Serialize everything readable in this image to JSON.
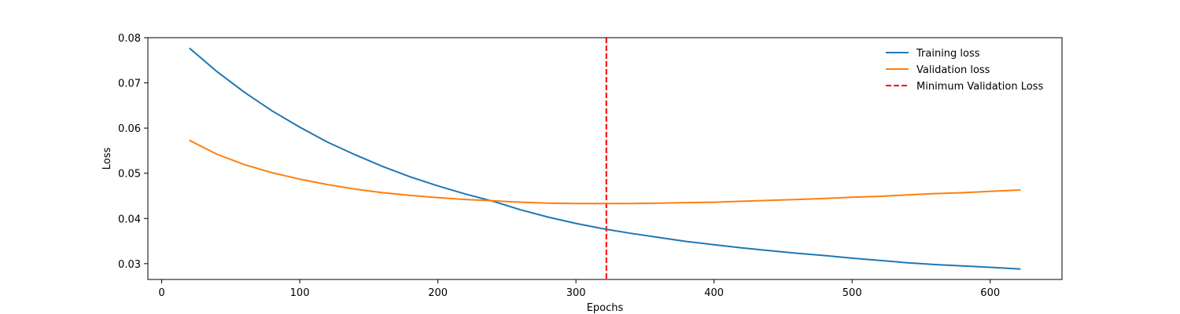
{
  "chart_data": {
    "type": "line",
    "title": "",
    "xlabel": "Epochs",
    "ylabel": "Loss",
    "xlim": [
      -10,
      652
    ],
    "ylim": [
      0.0265,
      0.08
    ],
    "xticks": [
      0,
      100,
      200,
      300,
      400,
      500,
      600
    ],
    "yticks": [
      0.03,
      0.04,
      0.05,
      0.06,
      0.07,
      0.08
    ],
    "grid": false,
    "legend_position": "top-right",
    "series": [
      {
        "name": "Training loss",
        "color": "#1f77b4",
        "style": "solid",
        "x": [
          20,
          40,
          60,
          80,
          100,
          120,
          140,
          160,
          180,
          200,
          220,
          240,
          260,
          280,
          300,
          320,
          340,
          360,
          380,
          400,
          420,
          440,
          460,
          480,
          500,
          520,
          540,
          560,
          580,
          600,
          622
        ],
        "y": [
          0.0777,
          0.0725,
          0.0679,
          0.0638,
          0.0602,
          0.0569,
          0.0541,
          0.0515,
          0.0492,
          0.0472,
          0.0454,
          0.0438,
          0.0419,
          0.0403,
          0.0389,
          0.0377,
          0.0367,
          0.0358,
          0.0349,
          0.0342,
          0.0335,
          0.0329,
          0.0323,
          0.0318,
          0.0312,
          0.0307,
          0.0302,
          0.0298,
          0.0295,
          0.0292,
          0.0288
        ]
      },
      {
        "name": "Validation loss",
        "color": "#ff7f0e",
        "style": "solid",
        "x": [
          20,
          40,
          60,
          80,
          100,
          120,
          140,
          160,
          180,
          200,
          220,
          240,
          260,
          280,
          300,
          320,
          340,
          360,
          380,
          400,
          420,
          440,
          460,
          480,
          500,
          520,
          540,
          560,
          580,
          600,
          622
        ],
        "y": [
          0.0573,
          0.0542,
          0.0519,
          0.0501,
          0.0487,
          0.0475,
          0.0465,
          0.0457,
          0.0451,
          0.0446,
          0.0442,
          0.0439,
          0.0436,
          0.0434,
          0.0433,
          0.0433,
          0.0433,
          0.0434,
          0.0435,
          0.0436,
          0.0438,
          0.044,
          0.0442,
          0.0444,
          0.0447,
          0.0449,
          0.0452,
          0.0455,
          0.0457,
          0.046,
          0.0463
        ]
      }
    ],
    "reference_lines": [
      {
        "name": "Minimum Validation Loss",
        "orientation": "vertical",
        "x": 322,
        "color": "#ff0000",
        "style": "dashed"
      }
    ]
  }
}
